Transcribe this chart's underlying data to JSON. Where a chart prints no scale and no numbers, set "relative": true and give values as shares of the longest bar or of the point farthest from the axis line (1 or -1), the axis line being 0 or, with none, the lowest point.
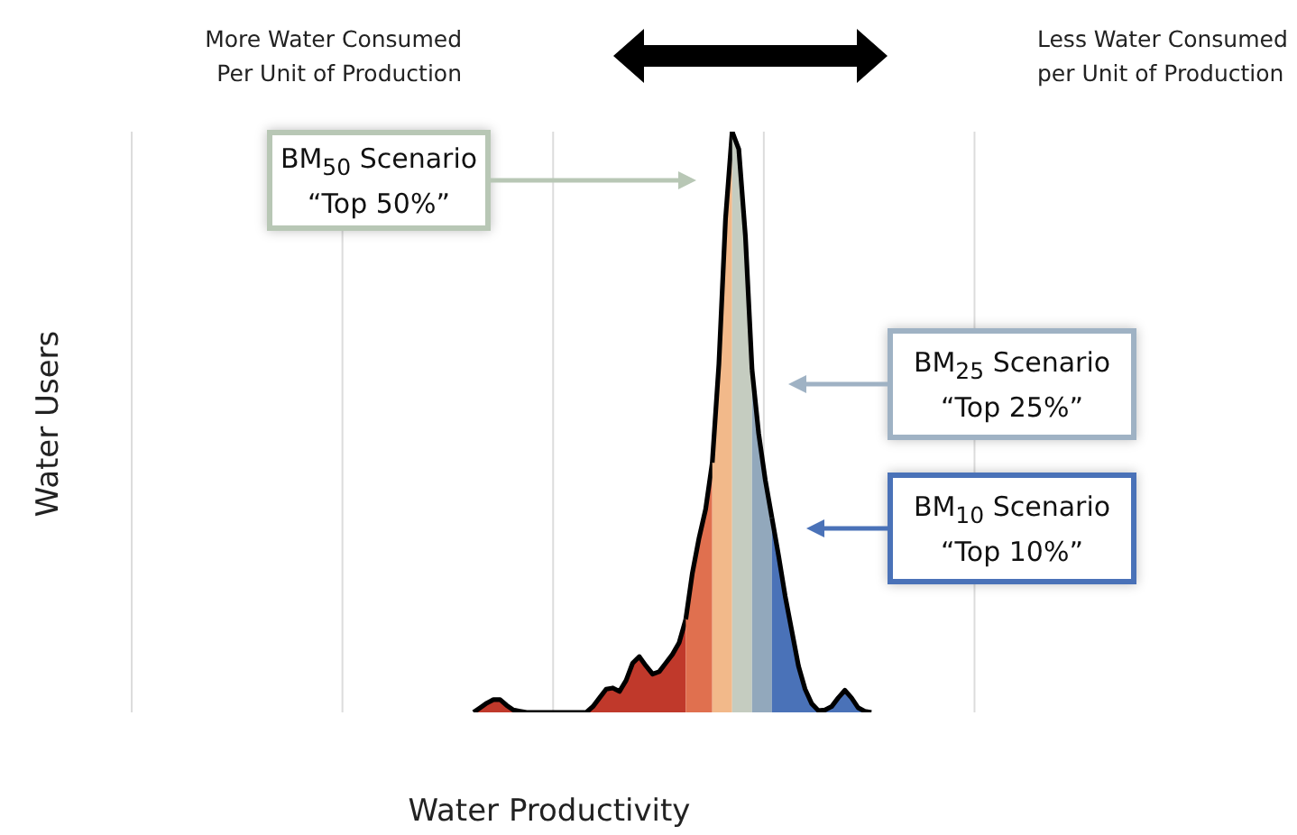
{
  "chart_data": {
    "type": "area",
    "relative": true,
    "xlabel": "Water Productivity",
    "ylabel": "Water Users",
    "categories": [
      null,
      null,
      null,
      null,
      null,
      null,
      null,
      null,
      null,
      null,
      null,
      null,
      null,
      null,
      null,
      null,
      null,
      null,
      null,
      null,
      null,
      null,
      null,
      null,
      null,
      null,
      null,
      null,
      null,
      null,
      null,
      null,
      null,
      null,
      null,
      null,
      null,
      null,
      null,
      null,
      null,
      null,
      null,
      null,
      null,
      null,
      null,
      null,
      null,
      null,
      null,
      null,
      null,
      null,
      null,
      null,
      null,
      null,
      null,
      null,
      null,
      null,
      null,
      null,
      null,
      null,
      null,
      null,
      null,
      null,
      null,
      null,
      null,
      null,
      null,
      null,
      null,
      null,
      null,
      null,
      null,
      null,
      null,
      null,
      null,
      null,
      null,
      null,
      null,
      null,
      null,
      null,
      null,
      null,
      null,
      null,
      null,
      null,
      null,
      null,
      null,
      null,
      null,
      null,
      null,
      null,
      null,
      null,
      null,
      null,
      null,
      null,
      null,
      null,
      null,
      null,
      null,
      null,
      null,
      null,
      null,
      null,
      null,
      null,
      null,
      null,
      null,
      null,
      null,
      null,
      null,
      null,
      null,
      null,
      null,
      null,
      null,
      null,
      null,
      null,
      null,
      null,
      null,
      null
    ],
    "tick_labels": false,
    "grid": "x",
    "legend": false,
    "line_style": "solid",
    "marker": "none",
    "series": [
      {
        "color": "#c0392b",
        "values": [
          null,
          null,
          null,
          null,
          null,
          null,
          null,
          null,
          null,
          null,
          null,
          null,
          null,
          null,
          null,
          null,
          null,
          null,
          null,
          null,
          null,
          null,
          null,
          null,
          null,
          null,
          null,
          null,
          null,
          null,
          null,
          null,
          null,
          null,
          null,
          null,
          null,
          null,
          null,
          null,
          null,
          null,
          null,
          null,
          null,
          null,
          null,
          null,
          null,
          null,
          null,
          null,
          null,
          null,
          null,
          null,
          null,
          null,
          null,
          null,
          0,
          0.008,
          0.016,
          0.022,
          0.022,
          0.012,
          0.004,
          0.002,
          0,
          0,
          0,
          0,
          0,
          0,
          0,
          0,
          0,
          0,
          0.01,
          0.025,
          0.04,
          0.042,
          0.036,
          0.055,
          0.085,
          0.096,
          0.08,
          0.066,
          0.07,
          0.085,
          0.1,
          0.12,
          0.16,
          null,
          null,
          null,
          null,
          null,
          null,
          null,
          null,
          null,
          null,
          null,
          null,
          null,
          null,
          null,
          null,
          null,
          null,
          null,
          null,
          null,
          null,
          null,
          null,
          null,
          null,
          null,
          null,
          null,
          null,
          null,
          null,
          null,
          null,
          null,
          null,
          null,
          null,
          null,
          null,
          null,
          null,
          null,
          null,
          null,
          null,
          null,
          null,
          null,
          null,
          null
        ]
      },
      {
        "color": "#e0704f",
        "values": [
          null,
          null,
          null,
          null,
          null,
          null,
          null,
          null,
          null,
          null,
          null,
          null,
          null,
          null,
          null,
          null,
          null,
          null,
          null,
          null,
          null,
          null,
          null,
          null,
          null,
          null,
          null,
          null,
          null,
          null,
          null,
          null,
          null,
          null,
          null,
          null,
          null,
          null,
          null,
          null,
          null,
          null,
          null,
          null,
          null,
          null,
          null,
          null,
          null,
          null,
          null,
          null,
          null,
          null,
          null,
          null,
          null,
          null,
          null,
          null,
          null,
          null,
          null,
          null,
          null,
          null,
          null,
          null,
          null,
          null,
          null,
          null,
          null,
          null,
          null,
          null,
          null,
          null,
          null,
          null,
          null,
          null,
          null,
          null,
          null,
          null,
          null,
          null,
          null,
          null,
          null,
          null,
          0.16,
          0.24,
          0.3,
          0.35,
          0.43,
          null,
          null,
          null,
          null,
          null,
          null,
          null,
          null,
          null,
          null,
          null,
          null,
          null,
          null,
          null,
          null,
          null,
          null,
          null,
          null,
          null,
          null,
          null,
          null,
          null,
          null,
          null,
          null,
          null,
          null,
          null,
          null,
          null,
          null,
          null,
          null,
          null,
          null,
          null,
          null,
          null,
          null,
          null,
          null,
          null,
          null,
          null
        ]
      },
      {
        "color": "#f2b98a",
        "values": [
          null,
          null,
          null,
          null,
          null,
          null,
          null,
          null,
          null,
          null,
          null,
          null,
          null,
          null,
          null,
          null,
          null,
          null,
          null,
          null,
          null,
          null,
          null,
          null,
          null,
          null,
          null,
          null,
          null,
          null,
          null,
          null,
          null,
          null,
          null,
          null,
          null,
          null,
          null,
          null,
          null,
          null,
          null,
          null,
          null,
          null,
          null,
          null,
          null,
          null,
          null,
          null,
          null,
          null,
          null,
          null,
          null,
          null,
          null,
          null,
          null,
          null,
          null,
          null,
          null,
          null,
          null,
          null,
          null,
          null,
          null,
          null,
          null,
          null,
          null,
          null,
          null,
          null,
          null,
          null,
          null,
          null,
          null,
          null,
          null,
          null,
          null,
          null,
          null,
          null,
          null,
          null,
          null,
          null,
          null,
          null,
          0.43,
          0.6,
          0.85,
          1,
          null,
          null,
          null,
          null,
          null,
          null,
          null,
          null,
          null,
          null,
          null,
          null,
          null,
          null,
          null,
          null,
          null,
          null,
          null,
          null,
          null,
          null,
          null,
          null,
          null,
          null,
          null,
          null,
          null,
          null,
          null,
          null,
          null,
          null,
          null,
          null,
          null,
          null,
          null,
          null,
          null,
          null,
          null,
          null
        ]
      },
      {
        "color": "#c5ccc0",
        "values": [
          null,
          null,
          null,
          null,
          null,
          null,
          null,
          null,
          null,
          null,
          null,
          null,
          null,
          null,
          null,
          null,
          null,
          null,
          null,
          null,
          null,
          null,
          null,
          null,
          null,
          null,
          null,
          null,
          null,
          null,
          null,
          null,
          null,
          null,
          null,
          null,
          null,
          null,
          null,
          null,
          null,
          null,
          null,
          null,
          null,
          null,
          null,
          null,
          null,
          null,
          null,
          null,
          null,
          null,
          null,
          null,
          null,
          null,
          null,
          null,
          null,
          null,
          null,
          null,
          null,
          null,
          null,
          null,
          null,
          null,
          null,
          null,
          null,
          null,
          null,
          null,
          null,
          null,
          null,
          null,
          null,
          null,
          null,
          null,
          null,
          null,
          null,
          null,
          null,
          null,
          null,
          null,
          null,
          null,
          null,
          null,
          null,
          null,
          null,
          1,
          0.97,
          0.82,
          0.59,
          null,
          null,
          null,
          null,
          null,
          null,
          null,
          null,
          null,
          null,
          null,
          null,
          null,
          null,
          null,
          null,
          null,
          null,
          null,
          null,
          null,
          null,
          null,
          null,
          null,
          null,
          null,
          null,
          null,
          null,
          null,
          null,
          null,
          null,
          null,
          null,
          null,
          null,
          null,
          null,
          null
        ]
      },
      {
        "color": "#92a8bc",
        "values": [
          null,
          null,
          null,
          null,
          null,
          null,
          null,
          null,
          null,
          null,
          null,
          null,
          null,
          null,
          null,
          null,
          null,
          null,
          null,
          null,
          null,
          null,
          null,
          null,
          null,
          null,
          null,
          null,
          null,
          null,
          null,
          null,
          null,
          null,
          null,
          null,
          null,
          null,
          null,
          null,
          null,
          null,
          null,
          null,
          null,
          null,
          null,
          null,
          null,
          null,
          null,
          null,
          null,
          null,
          null,
          null,
          null,
          null,
          null,
          null,
          null,
          null,
          null,
          null,
          null,
          null,
          null,
          null,
          null,
          null,
          null,
          null,
          null,
          null,
          null,
          null,
          null,
          null,
          null,
          null,
          null,
          null,
          null,
          null,
          null,
          null,
          null,
          null,
          null,
          null,
          null,
          null,
          null,
          null,
          null,
          null,
          null,
          null,
          null,
          null,
          null,
          null,
          0.59,
          0.48,
          0.4,
          0.335,
          null,
          null,
          null,
          null,
          null,
          null,
          null,
          null,
          null,
          null,
          null,
          null,
          null,
          null,
          null,
          null,
          null,
          null,
          null,
          null,
          null,
          null,
          null,
          null,
          null,
          null,
          null,
          null,
          null,
          null,
          null,
          null,
          null,
          null,
          null,
          null,
          null,
          null
        ]
      },
      {
        "color": "#4a72b8",
        "values": [
          null,
          null,
          null,
          null,
          null,
          null,
          null,
          null,
          null,
          null,
          null,
          null,
          null,
          null,
          null,
          null,
          null,
          null,
          null,
          null,
          null,
          null,
          null,
          null,
          null,
          null,
          null,
          null,
          null,
          null,
          null,
          null,
          null,
          null,
          null,
          null,
          null,
          null,
          null,
          null,
          null,
          null,
          null,
          null,
          null,
          null,
          null,
          null,
          null,
          null,
          null,
          null,
          null,
          null,
          null,
          null,
          null,
          null,
          null,
          null,
          null,
          null,
          null,
          null,
          null,
          null,
          null,
          null,
          null,
          null,
          null,
          null,
          null,
          null,
          null,
          null,
          null,
          null,
          null,
          null,
          null,
          null,
          null,
          null,
          null,
          null,
          null,
          null,
          null,
          null,
          null,
          null,
          null,
          null,
          null,
          null,
          null,
          null,
          null,
          null,
          null,
          null,
          null,
          null,
          null,
          0.335,
          0.27,
          0.2,
          0.14,
          0.08,
          0.04,
          0.015,
          0.003,
          0.004,
          0.01,
          0.025,
          0.038,
          0.025,
          0.008,
          0.002,
          0,
          null,
          null,
          null,
          null,
          null,
          null,
          null,
          null,
          null,
          null,
          null,
          null,
          null,
          null,
          null,
          null,
          null,
          null,
          null,
          null,
          null,
          null,
          null
        ]
      }
    ],
    "annotations": [
      "BM$_{50}$ Scenario\n“Top 50%”",
      "BM$_{25}$ Scenario\n“Top 25%”",
      "BM$_{10}$ Scenario\n“Top 10%”",
      "More Water Consumed\nPer Unit of Production",
      "Less Water Consumed\nper Unit of Production"
    ]
  }
}
